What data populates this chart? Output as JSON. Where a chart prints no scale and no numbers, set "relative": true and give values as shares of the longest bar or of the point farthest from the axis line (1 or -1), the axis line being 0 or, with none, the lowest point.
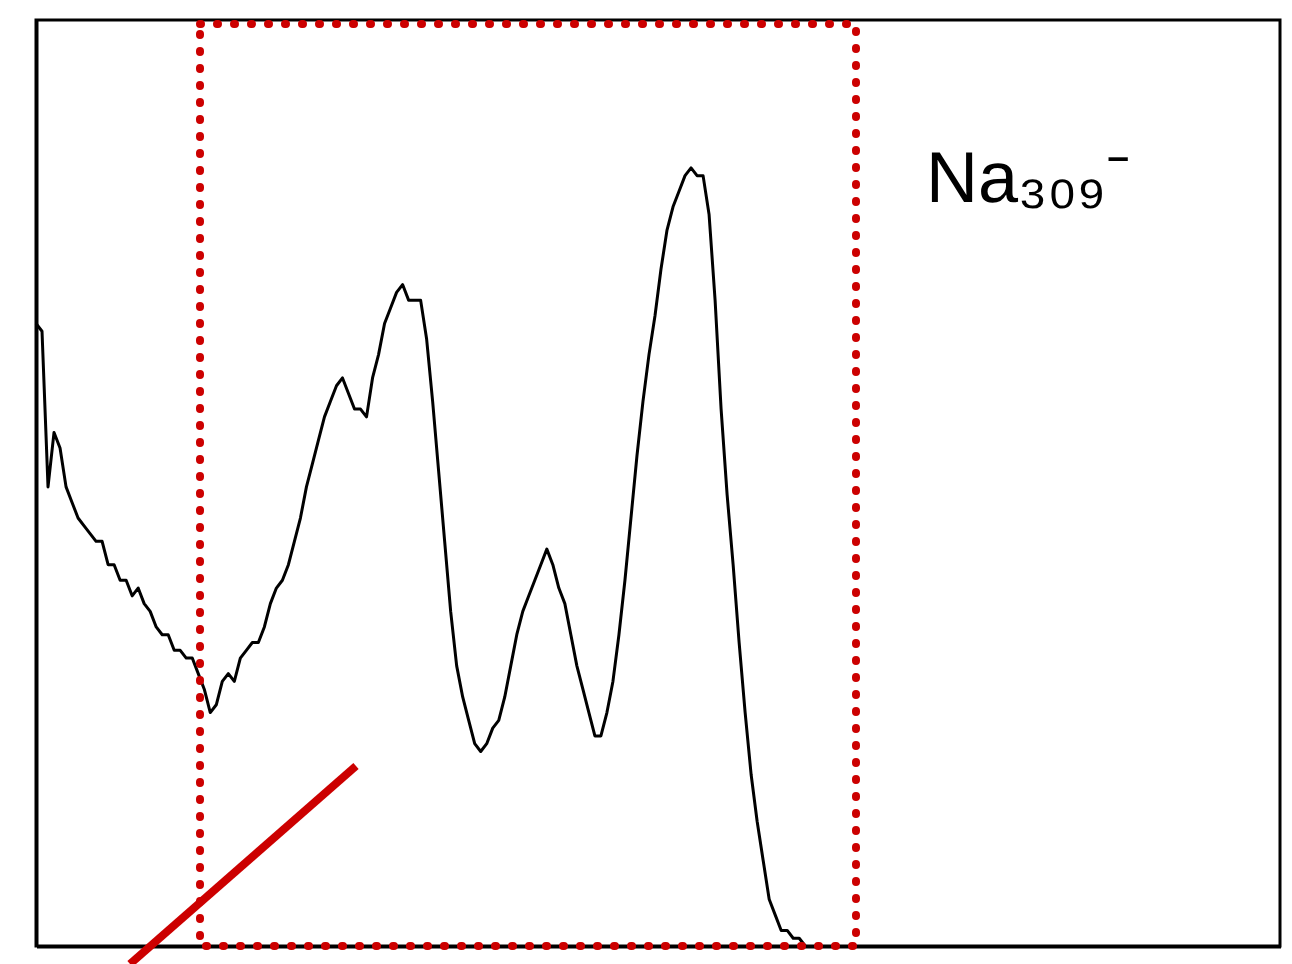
{
  "chart_data": {
    "type": "line",
    "relative": true,
    "categories": [
      null,
      null,
      null,
      null,
      null,
      null,
      null,
      null,
      null,
      null,
      null,
      null,
      null,
      null,
      null,
      null,
      null,
      null,
      null,
      null,
      null,
      null,
      null,
      null,
      null,
      null,
      null,
      null,
      null,
      null,
      null,
      null,
      null,
      null,
      null,
      null,
      null,
      null,
      null,
      null,
      null,
      null,
      null,
      null,
      null,
      null,
      null,
      null,
      null,
      null,
      null,
      null,
      null,
      null,
      null,
      null,
      null,
      null,
      null,
      null,
      null,
      null,
      null,
      null,
      null,
      null,
      null,
      null,
      null,
      null,
      null,
      null,
      null,
      null,
      null,
      null,
      null,
      null,
      null,
      null,
      null,
      null,
      null,
      null,
      null,
      null,
      null,
      null,
      null,
      null,
      null,
      null,
      null,
      null,
      null,
      null,
      null,
      null,
      null,
      null,
      null,
      null,
      null,
      null,
      null,
      null,
      null,
      null,
      null,
      null,
      null,
      null,
      null,
      null,
      null,
      null,
      null,
      null,
      null,
      null,
      null,
      null,
      null,
      null,
      null,
      null,
      null,
      null,
      null,
      null,
      null,
      null,
      null,
      null,
      null,
      null,
      null,
      null,
      null,
      null,
      null,
      null,
      null,
      null,
      null,
      null,
      null,
      null,
      null,
      null,
      null,
      null,
      null,
      null,
      null,
      null,
      null,
      null,
      null,
      null,
      null,
      null,
      null,
      null,
      null,
      null,
      null,
      null,
      null,
      null,
      null,
      null,
      null,
      null,
      null,
      null,
      null,
      null,
      null,
      null,
      null,
      null,
      null,
      null,
      null,
      null,
      null,
      null,
      null,
      null,
      null,
      null,
      null,
      null,
      null,
      null,
      null,
      null,
      null,
      null,
      null,
      null,
      null,
      null,
      null,
      null,
      null,
      null
    ],
    "series": [
      {
        "color": "#000000",
        "values": [
          0.8,
          0.79,
          0.59,
          0.66,
          0.64,
          0.59,
          0.57,
          0.55,
          0.54,
          0.53,
          0.52,
          0.52,
          0.49,
          0.49,
          0.47,
          0.47,
          0.45,
          0.46,
          0.44,
          0.43,
          0.41,
          0.4,
          0.4,
          0.38,
          0.38,
          0.37,
          0.37,
          0.35,
          0.33,
          0.3,
          0.31,
          0.34,
          0.35,
          0.34,
          0.37,
          0.38,
          0.39,
          0.39,
          0.41,
          0.44,
          0.46,
          0.47,
          0.49,
          0.52,
          0.55,
          0.59,
          0.62,
          0.65,
          0.68,
          0.7,
          0.72,
          0.73,
          0.71,
          0.69,
          0.69,
          0.68,
          0.73,
          0.76,
          0.8,
          0.82,
          0.84,
          0.85,
          0.83,
          0.83,
          0.83,
          0.78,
          0.7,
          0.61,
          0.52,
          0.43,
          0.36,
          0.32,
          0.29,
          0.26,
          0.25,
          0.26,
          0.28,
          0.29,
          0.32,
          0.36,
          0.4,
          0.43,
          0.45,
          0.47,
          0.49,
          0.51,
          0.49,
          0.46,
          0.44,
          0.4,
          0.36,
          0.33,
          0.3,
          0.27,
          0.27,
          0.3,
          0.34,
          0.4,
          0.47,
          0.55,
          0.63,
          0.7,
          0.76,
          0.81,
          0.87,
          0.92,
          0.95,
          0.97,
          0.99,
          1,
          0.99,
          0.99,
          0.94,
          0.83,
          0.69,
          0.58,
          0.49,
          0.39,
          0.3,
          0.22,
          0.16,
          0.11,
          0.06,
          0.04,
          0.02,
          0.02,
          0.01,
          0.01,
          0,
          null,
          null,
          null,
          null,
          null,
          null,
          null,
          null,
          null,
          null,
          null,
          null,
          null,
          null,
          null,
          null,
          null,
          null,
          null,
          null,
          null,
          null,
          null,
          null,
          null,
          null,
          null,
          null,
          null,
          null,
          null,
          null,
          null,
          null,
          null,
          null,
          null,
          null,
          null,
          null,
          null,
          null,
          null,
          null,
          null,
          null,
          null,
          null,
          null,
          null,
          null,
          null,
          null,
          null,
          null,
          null,
          null,
          null,
          null,
          null,
          null,
          null,
          null,
          null,
          null,
          null,
          null,
          null,
          null,
          null,
          null,
          null,
          null,
          null,
          null,
          null,
          null,
          null,
          null
        ]
      }
    ],
    "annotations": [
      "Na₃₀₉⁻"
    ],
    "line_style": "solid",
    "grid": false
  }
}
